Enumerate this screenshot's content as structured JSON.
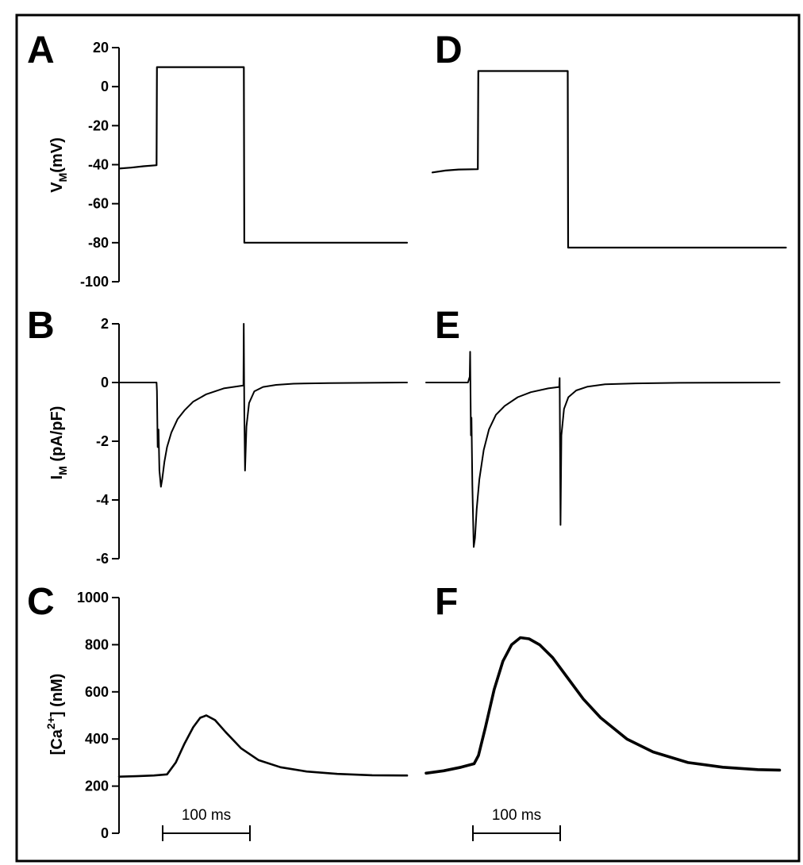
{
  "figure": {
    "panel_labels": [
      "A",
      "B",
      "C",
      "D",
      "E",
      "F"
    ],
    "scale_bar_label": "100 ms"
  },
  "chart_data": [
    {
      "panel": "A",
      "type": "line",
      "ylabel_main": "V",
      "ylabel_sub": "M",
      "ylabel_rest": "(mV)",
      "ylim": [
        -100,
        20
      ],
      "yticks": [
        20,
        0,
        -20,
        -40,
        -60,
        -80,
        -100
      ],
      "x_unit": "ms",
      "series": [
        {
          "x": [
            0,
            14,
            28,
            43,
            43.5,
            143,
            143.5,
            330
          ],
          "y": [
            -42,
            -41.5,
            -40.8,
            -40.3,
            10,
            10,
            -80,
            -80
          ]
        }
      ]
    },
    {
      "panel": "B",
      "type": "line",
      "ylabel_main": "I",
      "ylabel_sub": "M",
      "ylabel_rest": " (pA/pF)",
      "ylim": [
        -6,
        2
      ],
      "yticks": [
        2,
        0,
        -2,
        -4,
        -6
      ],
      "x_unit": "ms",
      "series": [
        {
          "x": [
            0,
            43,
            43.5,
            44.3,
            45.3,
            46.3,
            48,
            49.5,
            52,
            55,
            60,
            67,
            75,
            85,
            100,
            120,
            142.5,
            142.9,
            143.5,
            144.4,
            146,
            149,
            155,
            165,
            180,
            200,
            240,
            330
          ],
          "y": [
            0,
            0,
            -0.3,
            -2.2,
            -1.6,
            -3.0,
            -3.55,
            -3.3,
            -2.7,
            -2.2,
            -1.7,
            -1.25,
            -0.95,
            -0.65,
            -0.4,
            -0.2,
            -0.1,
            2.0,
            -1.0,
            -3.0,
            -1.5,
            -0.7,
            -0.3,
            -0.15,
            -0.08,
            -0.04,
            -0.02,
            0
          ]
        }
      ]
    },
    {
      "panel": "C",
      "type": "line",
      "ylabel_main": "[Ca",
      "ylabel_sup": "2+",
      "ylabel_rest": "] (nM)",
      "ylim": [
        0,
        1000
      ],
      "yticks": [
        1000,
        800,
        600,
        400,
        200,
        0
      ],
      "x_unit": "ms",
      "series": [
        {
          "x": [
            0,
            20,
            40,
            55,
            65,
            75,
            85,
            93,
            100,
            110,
            122,
            140,
            160,
            185,
            215,
            250,
            290,
            330
          ],
          "y": [
            240,
            242,
            245,
            250,
            300,
            380,
            450,
            490,
            500,
            480,
            430,
            360,
            310,
            280,
            262,
            252,
            246,
            245
          ]
        }
      ]
    },
    {
      "panel": "D",
      "type": "line",
      "ylim": [
        -100,
        20
      ],
      "x_unit": "ms",
      "series": [
        {
          "x": [
            0,
            15,
            30,
            52,
            52.5,
            155,
            155.5,
            405
          ],
          "y": [
            -44,
            -43,
            -42.5,
            -42.3,
            8,
            8,
            -82.5,
            -82.5
          ]
        }
      ]
    },
    {
      "panel": "E",
      "type": "line",
      "ylim": [
        -6,
        2
      ],
      "x_unit": "ms",
      "series": [
        {
          "x": [
            0,
            48,
            50,
            50.5,
            51.4,
            52,
            53,
            54.5,
            56,
            58,
            61,
            66,
            72,
            80,
            90,
            105,
            120,
            140,
            152.5,
            153,
            154,
            155,
            158,
            163,
            172,
            185,
            205,
            240,
            290,
            405
          ],
          "y": [
            0,
            0,
            0.2,
            1.05,
            -1.8,
            -1.2,
            -3.5,
            -5.6,
            -5.3,
            -4.3,
            -3.3,
            -2.3,
            -1.6,
            -1.1,
            -0.8,
            -0.5,
            -0.33,
            -0.2,
            -0.15,
            0.15,
            -4.85,
            -1.8,
            -0.9,
            -0.5,
            -0.27,
            -0.14,
            -0.06,
            -0.03,
            -0.01,
            0
          ]
        }
      ]
    },
    {
      "panel": "F",
      "type": "line",
      "ylim": [
        0,
        1000
      ],
      "x_unit": "ms",
      "series": [
        {
          "x": [
            0,
            20,
            40,
            55,
            60,
            68,
            78,
            88,
            98,
            108,
            118,
            130,
            145,
            160,
            180,
            200,
            230,
            260,
            300,
            340,
            380,
            405
          ],
          "y": [
            255,
            265,
            280,
            295,
            330,
            450,
            610,
            730,
            800,
            830,
            825,
            800,
            745,
            670,
            570,
            490,
            400,
            345,
            300,
            280,
            270,
            268
          ]
        }
      ]
    }
  ]
}
